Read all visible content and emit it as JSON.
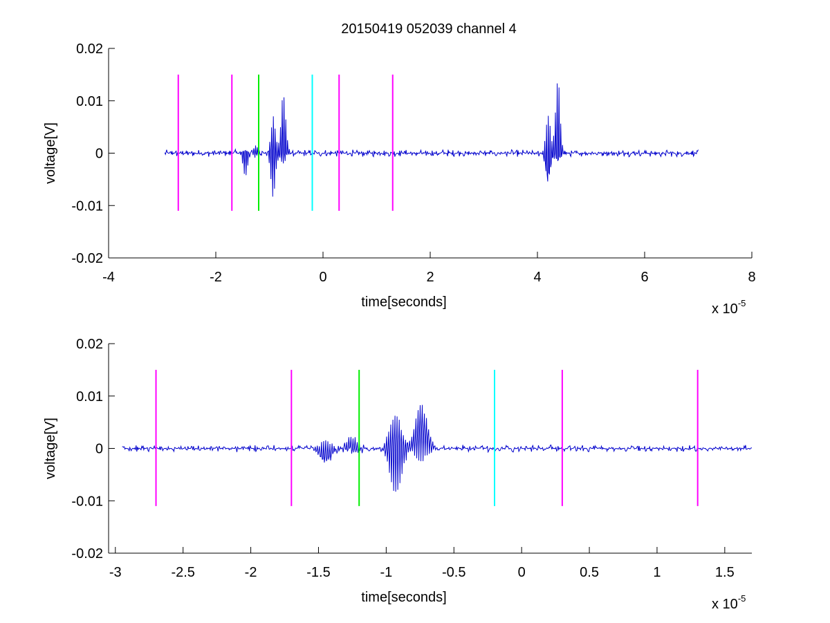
{
  "figure": {
    "title": "20150419 052039 channel 4",
    "background": "#ffffff"
  },
  "colors": {
    "signal": "#0000cc",
    "magenta": "#ff00ff",
    "green": "#00ee00",
    "cyan": "#00ffff",
    "axis": "#000000"
  },
  "chart_data": [
    {
      "type": "line",
      "title": "20150419 052039 channel 4",
      "xlabel": "time[seconds]",
      "ylabel": "voltage[V]",
      "x_multiplier": "x 10",
      "x_exponent": "-5",
      "xlim": [
        -4,
        8
      ],
      "ylim": [
        -0.02,
        0.02
      ],
      "xticks": [
        -4,
        -2,
        0,
        2,
        4,
        6,
        8
      ],
      "xtick_labels": [
        "-4",
        "-2",
        "0",
        "2",
        "4",
        "6",
        "8"
      ],
      "yticks": [
        0.02,
        0.01,
        0,
        -0.01,
        -0.02
      ],
      "ytick_labels": [
        "0.02",
        "0.01",
        "0",
        "-0.01",
        "-0.02"
      ],
      "grid": false,
      "series": [
        {
          "color": "#0000cc",
          "x_range": [
            -2.95,
            7.0
          ],
          "baseline": 0.0,
          "noise_amplitude": 0.0007,
          "bursts": [
            {
              "x": -1.45,
              "peak_high": 0.001,
              "peak_low": -0.0045
            },
            {
              "x": -1.25,
              "peak_high": 0.002,
              "peak_low": -0.001
            },
            {
              "x": -0.93,
              "peak_high": 0.0078,
              "peak_low": -0.0093
            },
            {
              "x": -0.74,
              "peak_high": 0.0125,
              "peak_low": -0.0025
            },
            {
              "x": 4.2,
              "peak_high": 0.007,
              "peak_low": -0.0098
            },
            {
              "x": 4.38,
              "peak_high": 0.0138,
              "peak_low": -0.0028
            }
          ]
        }
      ],
      "markers": [
        {
          "x": -2.7,
          "y_range": [
            -0.011,
            0.015
          ],
          "color": "#ff00ff"
        },
        {
          "x": -1.7,
          "y_range": [
            -0.011,
            0.015
          ],
          "color": "#ff00ff"
        },
        {
          "x": -1.2,
          "y_range": [
            -0.011,
            0.015
          ],
          "color": "#00ee00"
        },
        {
          "x": -0.2,
          "y_range": [
            -0.011,
            0.015
          ],
          "color": "#00ffff"
        },
        {
          "x": 0.3,
          "y_range": [
            -0.011,
            0.015
          ],
          "color": "#ff00ff"
        },
        {
          "x": 1.3,
          "y_range": [
            -0.011,
            0.015
          ],
          "color": "#ff00ff"
        }
      ]
    },
    {
      "type": "line",
      "xlabel": "time[seconds]",
      "ylabel": "voltage[V]",
      "x_multiplier": "x 10",
      "x_exponent": "-5",
      "xlim": [
        -3.05,
        1.7
      ],
      "ylim": [
        -0.02,
        0.02
      ],
      "xticks": [
        -3,
        -2.5,
        -2,
        -1.5,
        -1,
        -0.5,
        0,
        0.5,
        1,
        1.5
      ],
      "xtick_labels": [
        "-3",
        "-2.5",
        "-2",
        "-1.5",
        "-1",
        "-0.5",
        "0",
        "0.5",
        "1",
        "1.5"
      ],
      "yticks": [
        0.02,
        0.01,
        0,
        -0.01,
        -0.02
      ],
      "ytick_labels": [
        "0.02",
        "0.01",
        "0",
        "-0.01",
        "-0.02"
      ],
      "grid": false,
      "series": [
        {
          "color": "#0000cc",
          "x_range": [
            -2.95,
            1.7
          ],
          "baseline": 0.0,
          "noise_amplitude": 0.0007,
          "bursts": [
            {
              "x": -1.45,
              "peak_high": 0.0015,
              "peak_low": -0.0045
            },
            {
              "x": -1.25,
              "peak_high": 0.002,
              "peak_low": -0.0012
            },
            {
              "x": -0.93,
              "peak_high": 0.0078,
              "peak_low": -0.0092
            },
            {
              "x": -0.74,
              "peak_high": 0.0125,
              "peak_low": -0.0025
            }
          ]
        }
      ],
      "markers": [
        {
          "x": -2.7,
          "y_range": [
            -0.011,
            0.015
          ],
          "color": "#ff00ff"
        },
        {
          "x": -1.7,
          "y_range": [
            -0.011,
            0.015
          ],
          "color": "#ff00ff"
        },
        {
          "x": -1.2,
          "y_range": [
            -0.011,
            0.015
          ],
          "color": "#00ee00"
        },
        {
          "x": -0.2,
          "y_range": [
            -0.011,
            0.015
          ],
          "color": "#00ffff"
        },
        {
          "x": 0.3,
          "y_range": [
            -0.011,
            0.015
          ],
          "color": "#ff00ff"
        },
        {
          "x": 1.3,
          "y_range": [
            -0.011,
            0.015
          ],
          "color": "#ff00ff"
        }
      ]
    }
  ]
}
